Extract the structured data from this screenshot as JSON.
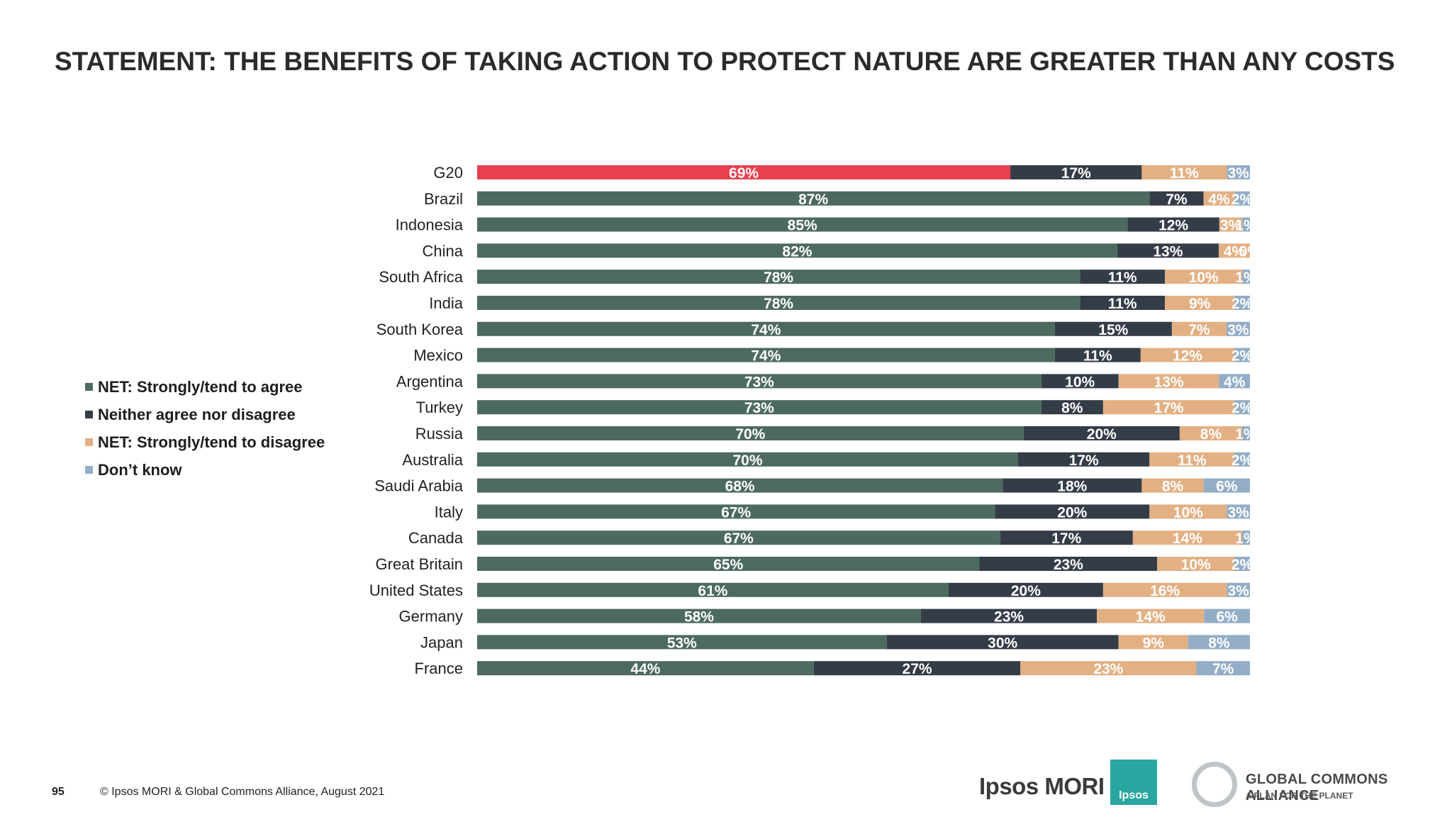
{
  "title": "STATEMENT: THE BENEFITS OF TAKING ACTION TO PROTECT NATURE ARE GREATER THAN ANY COSTS",
  "legend": [
    {
      "label": "NET: Strongly/tend to agree",
      "color": "#4d6a5e"
    },
    {
      "label": "Neither agree nor disagree",
      "color": "#343d47"
    },
    {
      "label": "NET: Strongly/tend to disagree",
      "color": "#e3b084"
    },
    {
      "label": "Don’t know",
      "color": "#93adc6"
    }
  ],
  "chart_data": {
    "type": "bar",
    "orientation": "horizontal",
    "stacked": true,
    "categories": [
      "G20",
      "Brazil",
      "Indonesia",
      "China",
      "South Africa",
      "India",
      "South Korea",
      "Mexico",
      "Argentina",
      "Turkey",
      "Russia",
      "Australia",
      "Saudi Arabia",
      "Italy",
      "Canada",
      "Great Britain",
      "United States",
      "Germany",
      "Japan",
      "France"
    ],
    "highlight_category": "G20",
    "highlight_color": "#e8404e",
    "series": [
      {
        "name": "NET: Strongly/tend to agree",
        "color": "#4d6a5e",
        "values": [
          69,
          87,
          85,
          82,
          78,
          78,
          74,
          74,
          73,
          73,
          70,
          70,
          68,
          67,
          67,
          65,
          61,
          58,
          53,
          44
        ]
      },
      {
        "name": "Neither agree nor disagree",
        "color": "#343d47",
        "values": [
          17,
          7,
          12,
          13,
          11,
          11,
          15,
          11,
          10,
          8,
          20,
          17,
          18,
          20,
          17,
          23,
          20,
          23,
          30,
          27
        ]
      },
      {
        "name": "NET: Strongly/tend to disagree",
        "color": "#e3b084",
        "values": [
          11,
          4,
          3,
          4,
          10,
          9,
          7,
          12,
          13,
          17,
          8,
          11,
          8,
          10,
          14,
          10,
          16,
          14,
          9,
          23
        ]
      },
      {
        "name": "Don’t know",
        "color": "#93adc6",
        "values": [
          3,
          2,
          1,
          0,
          1,
          2,
          3,
          2,
          4,
          2,
          1,
          2,
          6,
          3,
          1,
          2,
          3,
          6,
          8,
          7
        ]
      }
    ],
    "data_labels": [
      [
        "69%",
        "17%",
        "11%",
        "3%"
      ],
      [
        "87%",
        "7%",
        "4%",
        "2%"
      ],
      [
        "85%",
        "12%",
        "3%",
        "1%"
      ],
      [
        "82%",
        "13%",
        "4%",
        "0%"
      ],
      [
        "78%",
        "11%",
        "10%",
        "1%"
      ],
      [
        "78%",
        "11%",
        "9%",
        "2%"
      ],
      [
        "74%",
        "15%",
        "7%",
        "3%"
      ],
      [
        "74%",
        "11%",
        "12%",
        "2%"
      ],
      [
        "73%",
        "10%",
        "13%",
        "4%"
      ],
      [
        "73%",
        "8%",
        "17%",
        "2%"
      ],
      [
        "70%",
        "20%",
        "8%",
        "1%"
      ],
      [
        "70%",
        "17%",
        "11%",
        "2%"
      ],
      [
        "68%",
        "18%",
        "8%",
        "6%"
      ],
      [
        "67%",
        "20%",
        "10%",
        "3%"
      ],
      [
        "67%",
        "17%",
        "14%",
        "1%"
      ],
      [
        "65%",
        "23%",
        "10%",
        "2%"
      ],
      [
        "61%",
        "20%",
        "16%",
        "3%"
      ],
      [
        "58%",
        "23%",
        "14%",
        "6%"
      ],
      [
        "53%",
        "30%",
        "9%",
        "8%"
      ],
      [
        "44%",
        "27%",
        "23%",
        "7%"
      ]
    ],
    "xlim": [
      0,
      100
    ],
    "grid": false,
    "legend_position": "left"
  },
  "footer": {
    "page_number": "95",
    "copyright": "© Ipsos MORI & Global Commons Alliance, August 2021"
  },
  "logos": {
    "ipsos_mori": "Ipsos MORI",
    "ipsos_box": "Ipsos",
    "gca_name": "GLOBAL COMMONS ALLIANCE",
    "gca_tagline": "A PLAN FOR THE PLANET"
  }
}
